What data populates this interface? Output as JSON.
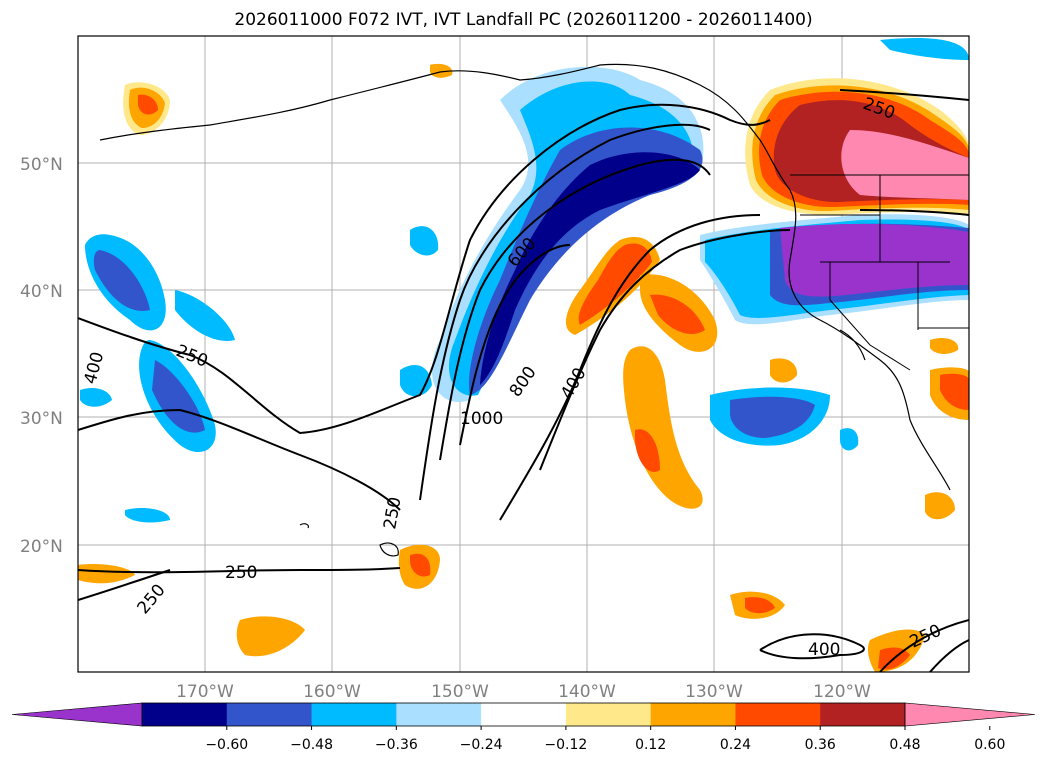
{
  "title": "2026011000 F072 IVT, IVT Landfall PC (2026011200 - 2026011400)",
  "lat_labels": [
    "50°N",
    "40°N",
    "30°N",
    "20°N"
  ],
  "lon_labels": [
    "170°W",
    "160°W",
    "150°W",
    "140°W",
    "130°W",
    "120°W"
  ],
  "contour_labels": [
    "250",
    "400",
    "250",
    "600",
    "800",
    "400",
    "1000",
    "250",
    "250",
    "400",
    "250",
    "250"
  ],
  "colorbar": {
    "colors": [
      "#9933cc",
      "#00008b",
      "#3355cc",
      "#00bbff",
      "#aadfff",
      "#ffffff",
      "#ffe88a",
      "#ffa500",
      "#ff4a00",
      "#b22222",
      "#ff88b0"
    ],
    "ticks": [
      "−0.60",
      "−0.48",
      "−0.36",
      "−0.24",
      "−0.12",
      "0.12",
      "0.24",
      "0.36",
      "0.48",
      "0.60"
    ]
  }
}
